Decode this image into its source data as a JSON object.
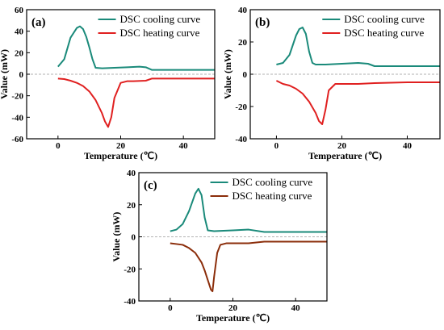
{
  "chart_data": [
    {
      "type": "line",
      "panel_label": "(a)",
      "xlabel": "Temperature (℃)",
      "ylabel": "Value (mW)",
      "xlim": [
        -10,
        50
      ],
      "ylim": [
        -60,
        60
      ],
      "xticks": [
        0,
        20,
        40
      ],
      "yticks": [
        -60,
        -40,
        -20,
        0,
        20,
        40,
        60
      ],
      "zero_line": true,
      "legend_position": "top-right",
      "series": [
        {
          "name": "DSC cooling curve",
          "color": "#1a8a7a",
          "x": [
            0,
            2,
            4,
            6,
            7,
            8,
            9,
            10,
            11,
            12,
            14,
            18,
            22,
            26,
            28,
            30,
            40,
            50
          ],
          "y": [
            7,
            14,
            34,
            43,
            44.5,
            42,
            35,
            25,
            14,
            6,
            5.5,
            6,
            6.5,
            7,
            6.5,
            4,
            4,
            4
          ]
        },
        {
          "name": "DSC heating curve",
          "color": "#e02020",
          "x": [
            0,
            2,
            4,
            6,
            8,
            10,
            12,
            14,
            15,
            16,
            17,
            18,
            20,
            22,
            24,
            28,
            30,
            40,
            50
          ],
          "y": [
            -4,
            -4.5,
            -6,
            -8,
            -11,
            -16,
            -24,
            -36,
            -44,
            -49,
            -40,
            -22,
            -8,
            -6.5,
            -6.5,
            -6,
            -4,
            -4,
            -4
          ]
        }
      ]
    },
    {
      "type": "line",
      "panel_label": "(b)",
      "xlabel": "Temperature (℃)",
      "ylabel": "Value (mW)",
      "xlim": [
        -8,
        50
      ],
      "ylim": [
        -40,
        40
      ],
      "xticks": [
        0,
        20,
        40
      ],
      "yticks": [
        -40,
        -20,
        0,
        20,
        40
      ],
      "zero_line": true,
      "legend_position": "top-right",
      "series": [
        {
          "name": "DSC cooling curve",
          "color": "#1a8a7a",
          "x": [
            0,
            2,
            4,
            6,
            7,
            8,
            9,
            10,
            11,
            12,
            15,
            20,
            25,
            28,
            30,
            40,
            50
          ],
          "y": [
            6,
            7,
            12,
            24,
            28,
            29,
            25,
            14,
            7,
            6,
            6,
            6.5,
            7,
            6.5,
            5,
            5,
            5
          ]
        },
        {
          "name": "DSC heating curve",
          "color": "#e02020",
          "x": [
            0,
            1,
            2,
            4,
            6,
            8,
            10,
            12,
            13,
            14,
            15,
            16,
            18,
            20,
            25,
            30,
            40,
            50
          ],
          "y": [
            -4,
            -5,
            -6,
            -7,
            -9,
            -12,
            -17,
            -24,
            -29,
            -31,
            -22,
            -10,
            -6,
            -6,
            -6,
            -5.5,
            -5,
            -5
          ]
        }
      ]
    },
    {
      "type": "line",
      "panel_label": "(c)",
      "xlabel": "Temperature (℃)",
      "ylabel": "Value (mW)",
      "xlim": [
        -10,
        50
      ],
      "ylim": [
        -40,
        40
      ],
      "xticks": [
        0,
        20,
        40
      ],
      "yticks": [
        -40,
        -20,
        0,
        20,
        40
      ],
      "zero_line": true,
      "legend_position": "top-right",
      "series": [
        {
          "name": "DSC cooling curve",
          "color": "#1a8a7a",
          "x": [
            0,
            2,
            4,
            6,
            8,
            9,
            10,
            11,
            12,
            14,
            20,
            25,
            30,
            40,
            50
          ],
          "y": [
            3.5,
            4.5,
            8,
            16,
            27,
            30,
            26,
            12,
            4,
            3.5,
            4,
            4.5,
            3,
            3,
            3
          ]
        },
        {
          "name": "DSC heating curve",
          "color": "#8b2d0a",
          "x": [
            0,
            2,
            4,
            6,
            8,
            10,
            11,
            12,
            13,
            13.5,
            14,
            15,
            16,
            18,
            20,
            25,
            30,
            40,
            50
          ],
          "y": [
            -4,
            -4.5,
            -5,
            -7,
            -10,
            -16,
            -21,
            -27,
            -33,
            -34,
            -25,
            -10,
            -5,
            -4,
            -4,
            -4,
            -3,
            -3,
            -3
          ]
        }
      ]
    }
  ]
}
